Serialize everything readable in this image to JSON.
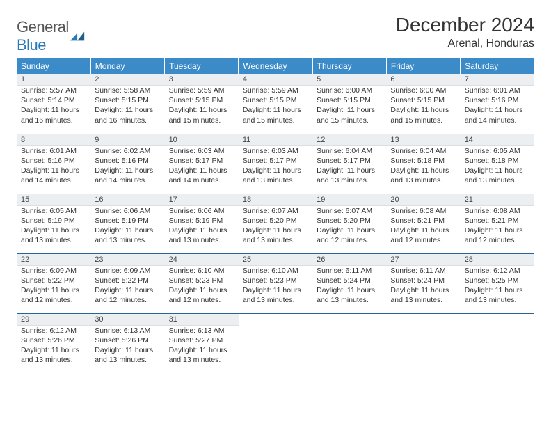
{
  "logo": {
    "word1": "General",
    "word2": "Blue"
  },
  "title": "December 2024",
  "location": "Arenal, Honduras",
  "accent_color": "#3b8bc9",
  "rule_color": "#2a6496",
  "daynum_bg": "#eceff1",
  "text_color": "#333333",
  "weekdays": [
    "Sunday",
    "Monday",
    "Tuesday",
    "Wednesday",
    "Thursday",
    "Friday",
    "Saturday"
  ],
  "weeks": [
    [
      {
        "n": "1",
        "sr": "Sunrise: 5:57 AM",
        "ss": "Sunset: 5:14 PM",
        "d1": "Daylight: 11 hours",
        "d2": "and 16 minutes."
      },
      {
        "n": "2",
        "sr": "Sunrise: 5:58 AM",
        "ss": "Sunset: 5:15 PM",
        "d1": "Daylight: 11 hours",
        "d2": "and 16 minutes."
      },
      {
        "n": "3",
        "sr": "Sunrise: 5:59 AM",
        "ss": "Sunset: 5:15 PM",
        "d1": "Daylight: 11 hours",
        "d2": "and 15 minutes."
      },
      {
        "n": "4",
        "sr": "Sunrise: 5:59 AM",
        "ss": "Sunset: 5:15 PM",
        "d1": "Daylight: 11 hours",
        "d2": "and 15 minutes."
      },
      {
        "n": "5",
        "sr": "Sunrise: 6:00 AM",
        "ss": "Sunset: 5:15 PM",
        "d1": "Daylight: 11 hours",
        "d2": "and 15 minutes."
      },
      {
        "n": "6",
        "sr": "Sunrise: 6:00 AM",
        "ss": "Sunset: 5:15 PM",
        "d1": "Daylight: 11 hours",
        "d2": "and 15 minutes."
      },
      {
        "n": "7",
        "sr": "Sunrise: 6:01 AM",
        "ss": "Sunset: 5:16 PM",
        "d1": "Daylight: 11 hours",
        "d2": "and 14 minutes."
      }
    ],
    [
      {
        "n": "8",
        "sr": "Sunrise: 6:01 AM",
        "ss": "Sunset: 5:16 PM",
        "d1": "Daylight: 11 hours",
        "d2": "and 14 minutes."
      },
      {
        "n": "9",
        "sr": "Sunrise: 6:02 AM",
        "ss": "Sunset: 5:16 PM",
        "d1": "Daylight: 11 hours",
        "d2": "and 14 minutes."
      },
      {
        "n": "10",
        "sr": "Sunrise: 6:03 AM",
        "ss": "Sunset: 5:17 PM",
        "d1": "Daylight: 11 hours",
        "d2": "and 14 minutes."
      },
      {
        "n": "11",
        "sr": "Sunrise: 6:03 AM",
        "ss": "Sunset: 5:17 PM",
        "d1": "Daylight: 11 hours",
        "d2": "and 13 minutes."
      },
      {
        "n": "12",
        "sr": "Sunrise: 6:04 AM",
        "ss": "Sunset: 5:17 PM",
        "d1": "Daylight: 11 hours",
        "d2": "and 13 minutes."
      },
      {
        "n": "13",
        "sr": "Sunrise: 6:04 AM",
        "ss": "Sunset: 5:18 PM",
        "d1": "Daylight: 11 hours",
        "d2": "and 13 minutes."
      },
      {
        "n": "14",
        "sr": "Sunrise: 6:05 AM",
        "ss": "Sunset: 5:18 PM",
        "d1": "Daylight: 11 hours",
        "d2": "and 13 minutes."
      }
    ],
    [
      {
        "n": "15",
        "sr": "Sunrise: 6:05 AM",
        "ss": "Sunset: 5:19 PM",
        "d1": "Daylight: 11 hours",
        "d2": "and 13 minutes."
      },
      {
        "n": "16",
        "sr": "Sunrise: 6:06 AM",
        "ss": "Sunset: 5:19 PM",
        "d1": "Daylight: 11 hours",
        "d2": "and 13 minutes."
      },
      {
        "n": "17",
        "sr": "Sunrise: 6:06 AM",
        "ss": "Sunset: 5:19 PM",
        "d1": "Daylight: 11 hours",
        "d2": "and 13 minutes."
      },
      {
        "n": "18",
        "sr": "Sunrise: 6:07 AM",
        "ss": "Sunset: 5:20 PM",
        "d1": "Daylight: 11 hours",
        "d2": "and 13 minutes."
      },
      {
        "n": "19",
        "sr": "Sunrise: 6:07 AM",
        "ss": "Sunset: 5:20 PM",
        "d1": "Daylight: 11 hours",
        "d2": "and 12 minutes."
      },
      {
        "n": "20",
        "sr": "Sunrise: 6:08 AM",
        "ss": "Sunset: 5:21 PM",
        "d1": "Daylight: 11 hours",
        "d2": "and 12 minutes."
      },
      {
        "n": "21",
        "sr": "Sunrise: 6:08 AM",
        "ss": "Sunset: 5:21 PM",
        "d1": "Daylight: 11 hours",
        "d2": "and 12 minutes."
      }
    ],
    [
      {
        "n": "22",
        "sr": "Sunrise: 6:09 AM",
        "ss": "Sunset: 5:22 PM",
        "d1": "Daylight: 11 hours",
        "d2": "and 12 minutes."
      },
      {
        "n": "23",
        "sr": "Sunrise: 6:09 AM",
        "ss": "Sunset: 5:22 PM",
        "d1": "Daylight: 11 hours",
        "d2": "and 12 minutes."
      },
      {
        "n": "24",
        "sr": "Sunrise: 6:10 AM",
        "ss": "Sunset: 5:23 PM",
        "d1": "Daylight: 11 hours",
        "d2": "and 12 minutes."
      },
      {
        "n": "25",
        "sr": "Sunrise: 6:10 AM",
        "ss": "Sunset: 5:23 PM",
        "d1": "Daylight: 11 hours",
        "d2": "and 13 minutes."
      },
      {
        "n": "26",
        "sr": "Sunrise: 6:11 AM",
        "ss": "Sunset: 5:24 PM",
        "d1": "Daylight: 11 hours",
        "d2": "and 13 minutes."
      },
      {
        "n": "27",
        "sr": "Sunrise: 6:11 AM",
        "ss": "Sunset: 5:24 PM",
        "d1": "Daylight: 11 hours",
        "d2": "and 13 minutes."
      },
      {
        "n": "28",
        "sr": "Sunrise: 6:12 AM",
        "ss": "Sunset: 5:25 PM",
        "d1": "Daylight: 11 hours",
        "d2": "and 13 minutes."
      }
    ],
    [
      {
        "n": "29",
        "sr": "Sunrise: 6:12 AM",
        "ss": "Sunset: 5:26 PM",
        "d1": "Daylight: 11 hours",
        "d2": "and 13 minutes."
      },
      {
        "n": "30",
        "sr": "Sunrise: 6:13 AM",
        "ss": "Sunset: 5:26 PM",
        "d1": "Daylight: 11 hours",
        "d2": "and 13 minutes."
      },
      {
        "n": "31",
        "sr": "Sunrise: 6:13 AM",
        "ss": "Sunset: 5:27 PM",
        "d1": "Daylight: 11 hours",
        "d2": "and 13 minutes."
      },
      null,
      null,
      null,
      null
    ]
  ]
}
